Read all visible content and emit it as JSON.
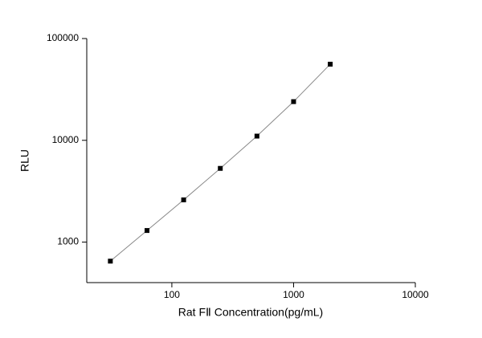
{
  "chart_data": {
    "type": "scatter",
    "x_label": "Rat FⅡ Concentration(pg/mL)",
    "y_label": "RLU",
    "x": [
      31.25,
      62.5,
      125,
      250,
      500,
      1000,
      2000
    ],
    "values": [
      650,
      1300,
      2600,
      5300,
      11000,
      24000,
      56000
    ],
    "color": "#000000",
    "line_color": "#888888",
    "xscale": "log",
    "yscale": "log",
    "xlim": [
      20,
      10000
    ],
    "ylim": [
      400,
      100000
    ],
    "xticks": [
      100,
      1000,
      10000
    ],
    "yticks": [
      1000,
      10000,
      100000
    ]
  }
}
